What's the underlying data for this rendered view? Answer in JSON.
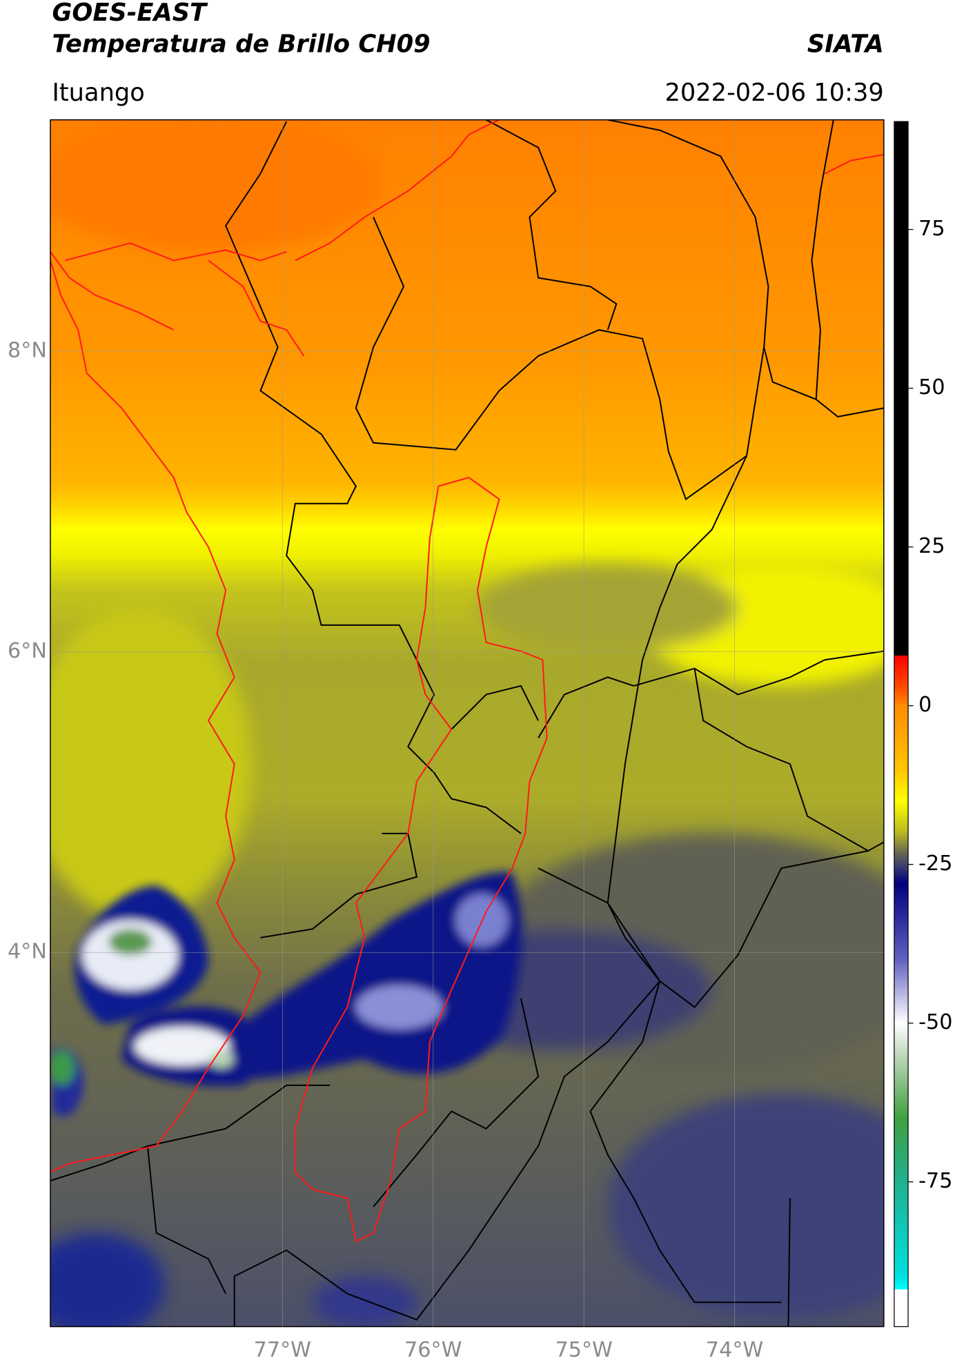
{
  "header": {
    "title": "GOES-EAST",
    "subtitle": "Temperatura de Brillo CH09",
    "source": "SIATA",
    "location": "Ituango",
    "datetime": "2022-02-06 10:39"
  },
  "map": {
    "xlim": [
      -78.54,
      -73.01
    ],
    "ylim": [
      1.51,
      9.54
    ],
    "xticks": [
      {
        "value": -77,
        "label": "77°W"
      },
      {
        "value": -76,
        "label": "76°W"
      },
      {
        "value": -75,
        "label": "75°W"
      },
      {
        "value": -74,
        "label": "74°W"
      }
    ],
    "yticks": [
      {
        "value": 8,
        "label": "8°N"
      },
      {
        "value": 6,
        "label": "6°N"
      },
      {
        "value": 4,
        "label": "4°N"
      }
    ],
    "grid": true
  },
  "colorbar": {
    "lim": [
      -97.8,
      92
    ],
    "ticks": [
      75,
      50,
      25,
      0,
      -25,
      -50,
      -75
    ]
  }
}
